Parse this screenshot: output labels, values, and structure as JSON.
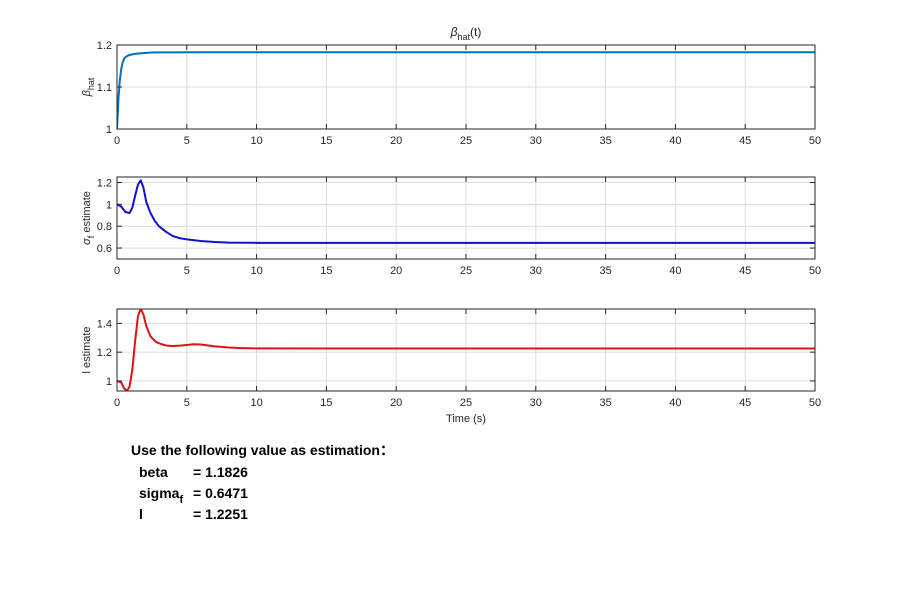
{
  "chart_data": [
    {
      "type": "line",
      "title_base": "β",
      "title_sub": "hat",
      "title_suffix": "(t)",
      "ylabel_base": "β",
      "ylabel_sub": "hat",
      "xlabel": "",
      "xlim": [
        0,
        50
      ],
      "ylim": [
        1,
        1.2
      ],
      "xticks": [
        0,
        5,
        10,
        15,
        20,
        25,
        30,
        35,
        40,
        45,
        50
      ],
      "yticks": [
        1,
        1.1,
        1.2
      ],
      "ytick_labels": [
        "1",
        "1.1",
        "1.2"
      ],
      "grid": true,
      "color": "#0072BD",
      "x": [
        0,
        0.05,
        0.1,
        0.2,
        0.3,
        0.4,
        0.5,
        0.6,
        0.8,
        1.0,
        1.3,
        1.6,
        2.0,
        2.5,
        3.0,
        4.0,
        6.0,
        10,
        20,
        30,
        40,
        50
      ],
      "y": [
        1.0,
        1.035,
        1.07,
        1.115,
        1.142,
        1.158,
        1.166,
        1.171,
        1.175,
        1.177,
        1.179,
        1.18,
        1.181,
        1.182,
        1.1823,
        1.1825,
        1.1826,
        1.1826,
        1.1826,
        1.1826,
        1.1826,
        1.1826
      ]
    },
    {
      "type": "line",
      "ylabel_base": "σ",
      "ylabel_sub": "f",
      "ylabel_suffix": " estimate",
      "xlabel": "",
      "xlim": [
        0,
        50
      ],
      "ylim": [
        0.5,
        1.25
      ],
      "xticks": [
        0,
        5,
        10,
        15,
        20,
        25,
        30,
        35,
        40,
        45,
        50
      ],
      "yticks": [
        0.6,
        0.8,
        1,
        1.2
      ],
      "ytick_labels": [
        "0.6",
        "0.8",
        "1",
        "1.2"
      ],
      "grid": true,
      "color": "#1010CC",
      "x": [
        0,
        0.3,
        0.6,
        0.9,
        1.1,
        1.3,
        1.5,
        1.7,
        1.9,
        2.1,
        2.4,
        2.7,
        3.0,
        3.5,
        4.0,
        4.5,
        5.0,
        6.0,
        7.0,
        8.0,
        10,
        15,
        20,
        30,
        40,
        50
      ],
      "y": [
        1.0,
        0.98,
        0.93,
        0.92,
        0.97,
        1.08,
        1.18,
        1.22,
        1.15,
        1.02,
        0.92,
        0.85,
        0.8,
        0.75,
        0.71,
        0.69,
        0.68,
        0.665,
        0.655,
        0.65,
        0.648,
        0.647,
        0.6471,
        0.6471,
        0.6471,
        0.6471
      ]
    },
    {
      "type": "line",
      "ylabel": "l estimate",
      "xlabel": "Time (s)",
      "xlim": [
        0,
        50
      ],
      "ylim": [
        0.93,
        1.5
      ],
      "xticks": [
        0,
        5,
        10,
        15,
        20,
        25,
        30,
        35,
        40,
        45,
        50
      ],
      "yticks": [
        1,
        1.2,
        1.4
      ],
      "ytick_labels": [
        "1",
        "1.2",
        "1.4"
      ],
      "grid": true,
      "color": "#DD1111",
      "x": [
        0,
        0.3,
        0.5,
        0.7,
        0.9,
        1.1,
        1.3,
        1.5,
        1.7,
        1.9,
        2.1,
        2.4,
        2.8,
        3.2,
        3.6,
        4.0,
        4.5,
        5.0,
        5.5,
        6.0,
        7.0,
        8.0,
        9.0,
        10,
        15,
        20,
        30,
        40,
        50
      ],
      "y": [
        1.0,
        0.99,
        0.95,
        0.93,
        0.96,
        1.08,
        1.28,
        1.45,
        1.5,
        1.46,
        1.38,
        1.31,
        1.27,
        1.255,
        1.245,
        1.243,
        1.245,
        1.25,
        1.255,
        1.253,
        1.24,
        1.232,
        1.228,
        1.226,
        1.2252,
        1.2251,
        1.2251,
        1.2251,
        1.2251
      ]
    }
  ],
  "annotation": {
    "heading": "Use the following value as estimation：",
    "rows": [
      {
        "name_base": "beta",
        "name_sub": "",
        "value": "= 1.1826"
      },
      {
        "name_base": "sigma",
        "name_sub": "f",
        "value": "= 0.6471"
      },
      {
        "name_base": "l",
        "name_sub": "",
        "value": "= 1.2251"
      }
    ]
  }
}
